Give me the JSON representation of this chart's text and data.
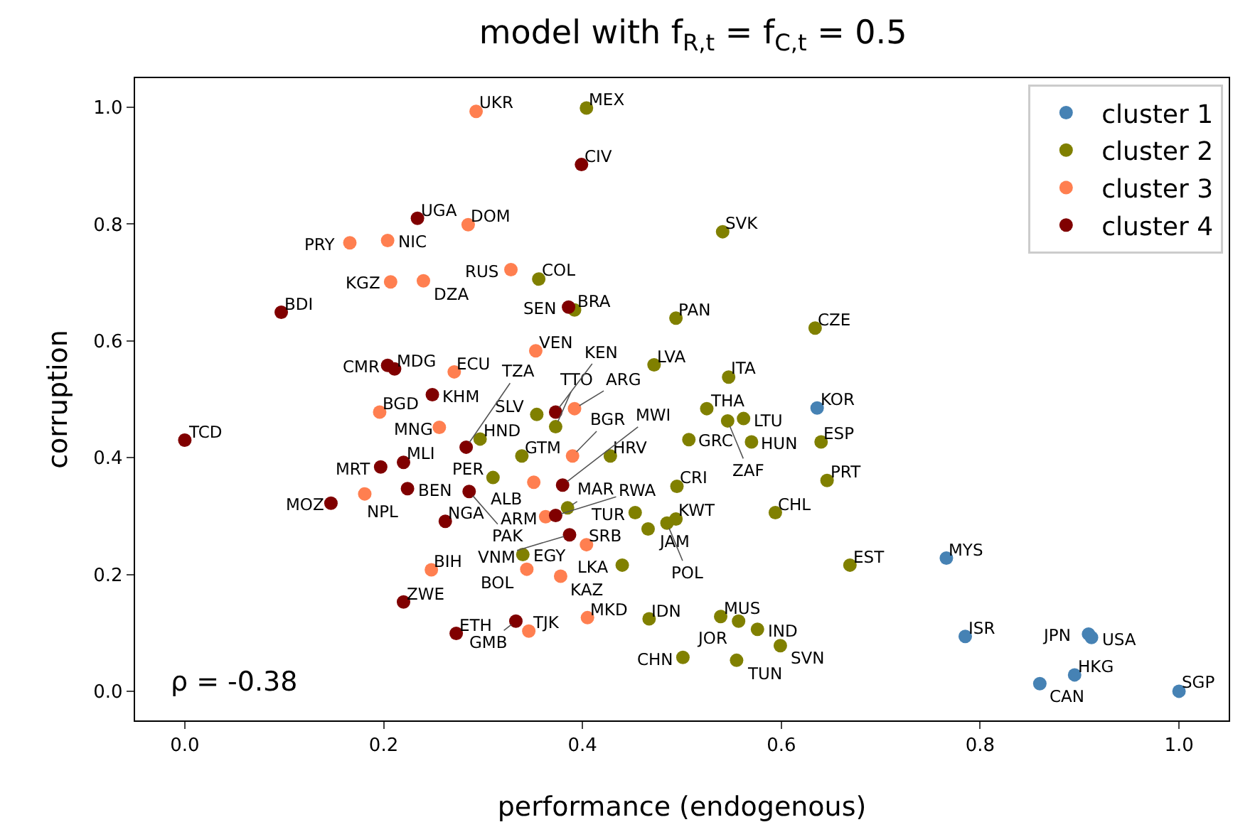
{
  "chart_data": {
    "type": "scatter",
    "title": "model with f$_{R,t}$ = f$_{C,t}$ = 0.5",
    "xlabel": "performance (endogenous)",
    "ylabel": "corruption",
    "xlim": [
      -0.05,
      1.05
    ],
    "ylim": [
      -0.05,
      1.05
    ],
    "xticks": [
      {
        "value": 0,
        "label": "0.0"
      },
      {
        "value": 0.2,
        "label": "0.2"
      },
      {
        "value": 0.4,
        "label": "0.4"
      },
      {
        "value": 0.6,
        "label": "0.6"
      },
      {
        "value": 0.8,
        "label": "0.8"
      },
      {
        "value": 1,
        "label": "1.0"
      }
    ],
    "yticks": [
      {
        "value": 0,
        "label": "0.0"
      },
      {
        "value": 0.2,
        "label": "0.2"
      },
      {
        "value": 0.4,
        "label": "0.4"
      },
      {
        "value": 0.6,
        "label": "0.6"
      },
      {
        "value": 0.8,
        "label": "0.8"
      },
      {
        "value": 1,
        "label": "1.0"
      }
    ],
    "grid": false,
    "legend": "top right",
    "marker": "circle",
    "series": [
      {
        "name": "cluster 1",
        "color": "#4682b4",
        "x": [
          0.636,
          0.766,
          0.785,
          0.909,
          0.912,
          0.895,
          0.86,
          1.0
        ],
        "values": [
          0.485,
          0.228,
          0.094,
          0.098,
          0.092,
          0.028,
          0.013,
          0.0
        ]
      },
      {
        "name": "cluster 2",
        "color": "#808000",
        "x": [
          0.404,
          0.541,
          0.356,
          0.392,
          0.494,
          0.634,
          0.472,
          0.547,
          0.525,
          0.546,
          0.562,
          0.507,
          0.57,
          0.64,
          0.646,
          0.495,
          0.453,
          0.494,
          0.466,
          0.485,
          0.594,
          0.669,
          0.44,
          0.34,
          0.467,
          0.539,
          0.557,
          0.576,
          0.599,
          0.501,
          0.555,
          0.297,
          0.339,
          0.428,
          0.31,
          0.385,
          0.354,
          0.373
        ],
        "values": [
          0.999,
          0.787,
          0.706,
          0.653,
          0.639,
          0.622,
          0.559,
          0.538,
          0.484,
          0.463,
          0.467,
          0.431,
          0.427,
          0.427,
          0.361,
          0.351,
          0.306,
          0.295,
          0.278,
          0.288,
          0.306,
          0.216,
          0.216,
          0.234,
          0.124,
          0.128,
          0.12,
          0.106,
          0.078,
          0.058,
          0.053,
          0.432,
          0.403,
          0.403,
          0.366,
          0.314,
          0.474,
          0.453
        ]
      },
      {
        "name": "cluster 3",
        "color": "#ff7f50",
        "x": [
          0.293,
          0.285,
          0.328,
          0.353,
          0.166,
          0.204,
          0.207,
          0.24,
          0.271,
          0.196,
          0.256,
          0.181,
          0.248,
          0.344,
          0.378,
          0.404,
          0.346,
          0.405,
          0.363,
          0.39,
          0.351,
          0.392
        ],
        "values": [
          0.993,
          0.799,
          0.722,
          0.583,
          0.768,
          0.772,
          0.701,
          0.703,
          0.547,
          0.478,
          0.452,
          0.338,
          0.208,
          0.209,
          0.197,
          0.251,
          0.103,
          0.126,
          0.299,
          0.403,
          0.358,
          0.484
        ]
      },
      {
        "name": "cluster 4",
        "color": "#800000",
        "x": [
          0.234,
          0.399,
          0.386,
          0.097,
          0.204,
          0.211,
          0.249,
          0,
          0.197,
          0.22,
          0.224,
          0.147,
          0.262,
          0.22,
          0.273,
          0.333,
          0.283,
          0.286,
          0.373,
          0.387,
          0.373,
          0.38
        ],
        "values": [
          0.81,
          0.902,
          0.658,
          0.649,
          0.558,
          0.552,
          0.508,
          0.43,
          0.384,
          0.392,
          0.347,
          0.322,
          0.291,
          0.153,
          0.099,
          0.12,
          0.418,
          0.342,
          0.301,
          0.268,
          0.478,
          0.353
        ]
      }
    ],
    "annotations": [
      {
        "text": "KOR",
        "x": 0.636,
        "y": 0.485
      },
      {
        "text": "MYS",
        "x": 0.766,
        "y": 0.228
      },
      {
        "text": "ISR",
        "x": 0.785,
        "y": 0.094
      },
      {
        "text": "JPN",
        "x": 0.909,
        "y": 0.098
      },
      {
        "text": "USA",
        "x": 0.912,
        "y": 0.092
      },
      {
        "text": "HKG",
        "x": 0.895,
        "y": 0.028
      },
      {
        "text": "CAN",
        "x": 0.86,
        "y": 0.013
      },
      {
        "text": "SGP",
        "x": 1.0,
        "y": 0.0
      },
      {
        "text": "MEX",
        "x": 0.404,
        "y": 0.999
      },
      {
        "text": "SVK",
        "x": 0.541,
        "y": 0.787
      },
      {
        "text": "COL",
        "x": 0.356,
        "y": 0.706
      },
      {
        "text": "BRA",
        "x": 0.392,
        "y": 0.653
      },
      {
        "text": "PAN",
        "x": 0.494,
        "y": 0.639
      },
      {
        "text": "CZE",
        "x": 0.634,
        "y": 0.622
      },
      {
        "text": "LVA",
        "x": 0.472,
        "y": 0.559
      },
      {
        "text": "ITA",
        "x": 0.547,
        "y": 0.538
      },
      {
        "text": "THA",
        "x": 0.525,
        "y": 0.484
      },
      {
        "text": "ZAF",
        "x": 0.546,
        "y": 0.463
      },
      {
        "text": "LTU",
        "x": 0.562,
        "y": 0.467
      },
      {
        "text": "GRC",
        "x": 0.507,
        "y": 0.431
      },
      {
        "text": "HUN",
        "x": 0.57,
        "y": 0.427
      },
      {
        "text": "ESP",
        "x": 0.64,
        "y": 0.427
      },
      {
        "text": "PRT",
        "x": 0.646,
        "y": 0.361
      },
      {
        "text": "CRI",
        "x": 0.495,
        "y": 0.351
      },
      {
        "text": "TUR",
        "x": 0.453,
        "y": 0.306
      },
      {
        "text": "KWT",
        "x": 0.494,
        "y": 0.295
      },
      {
        "text": "JAM",
        "x": 0.466,
        "y": 0.278
      },
      {
        "text": "POL",
        "x": 0.485,
        "y": 0.288
      },
      {
        "text": "CHL",
        "x": 0.594,
        "y": 0.306
      },
      {
        "text": "EST",
        "x": 0.669,
        "y": 0.216
      },
      {
        "text": "LKA",
        "x": 0.44,
        "y": 0.216
      },
      {
        "text": "EGY",
        "x": 0.34,
        "y": 0.234
      },
      {
        "text": "IDN",
        "x": 0.467,
        "y": 0.124
      },
      {
        "text": "MUS",
        "x": 0.539,
        "y": 0.128
      },
      {
        "text": "JOR",
        "x": 0.557,
        "y": 0.12
      },
      {
        "text": "IND",
        "x": 0.576,
        "y": 0.106
      },
      {
        "text": "SVN",
        "x": 0.599,
        "y": 0.078
      },
      {
        "text": "CHN",
        "x": 0.501,
        "y": 0.058
      },
      {
        "text": "TUN",
        "x": 0.555,
        "y": 0.053
      },
      {
        "text": "HND",
        "x": 0.297,
        "y": 0.432
      },
      {
        "text": "GTM",
        "x": 0.339,
        "y": 0.403
      },
      {
        "text": "HRV",
        "x": 0.428,
        "y": 0.403
      },
      {
        "text": "PER",
        "x": 0.31,
        "y": 0.366
      },
      {
        "text": "MAR",
        "x": 0.385,
        "y": 0.314
      },
      {
        "text": "SLV",
        "x": 0.354,
        "y": 0.474
      },
      {
        "text": "TTO",
        "x": 0.373,
        "y": 0.453
      },
      {
        "text": "UKR",
        "x": 0.293,
        "y": 0.993
      },
      {
        "text": "DOM",
        "x": 0.285,
        "y": 0.799
      },
      {
        "text": "RUS",
        "x": 0.328,
        "y": 0.722
      },
      {
        "text": "VEN",
        "x": 0.353,
        "y": 0.583
      },
      {
        "text": "PRY",
        "x": 0.166,
        "y": 0.768
      },
      {
        "text": "NIC",
        "x": 0.204,
        "y": 0.772
      },
      {
        "text": "KGZ",
        "x": 0.207,
        "y": 0.701
      },
      {
        "text": "DZA",
        "x": 0.24,
        "y": 0.703
      },
      {
        "text": "ECU",
        "x": 0.271,
        "y": 0.547
      },
      {
        "text": "BGD",
        "x": 0.196,
        "y": 0.478
      },
      {
        "text": "MNG",
        "x": 0.256,
        "y": 0.452
      },
      {
        "text": "NPL",
        "x": 0.181,
        "y": 0.338
      },
      {
        "text": "BIH",
        "x": 0.248,
        "y": 0.208
      },
      {
        "text": "BOL",
        "x": 0.344,
        "y": 0.209
      },
      {
        "text": "KAZ",
        "x": 0.378,
        "y": 0.197
      },
      {
        "text": "SRB",
        "x": 0.404,
        "y": 0.251
      },
      {
        "text": "TJK",
        "x": 0.346,
        "y": 0.103
      },
      {
        "text": "MKD",
        "x": 0.405,
        "y": 0.126
      },
      {
        "text": "ARM",
        "x": 0.363,
        "y": 0.299
      },
      {
        "text": "BGR",
        "x": 0.39,
        "y": 0.403
      },
      {
        "text": "ALB",
        "x": 0.351,
        "y": 0.358
      },
      {
        "text": "ARG",
        "x": 0.392,
        "y": 0.484
      },
      {
        "text": "UGA",
        "x": 0.234,
        "y": 0.81
      },
      {
        "text": "CIV",
        "x": 0.399,
        "y": 0.902
      },
      {
        "text": "SEN",
        "x": 0.386,
        "y": 0.658
      },
      {
        "text": "BDI",
        "x": 0.097,
        "y": 0.649
      },
      {
        "text": "CMR",
        "x": 0.204,
        "y": 0.558
      },
      {
        "text": "MDG",
        "x": 0.211,
        "y": 0.552
      },
      {
        "text": "KHM",
        "x": 0.249,
        "y": 0.508
      },
      {
        "text": "TCD",
        "x": 0,
        "y": 0.43
      },
      {
        "text": "MRT",
        "x": 0.197,
        "y": 0.384
      },
      {
        "text": "MLI",
        "x": 0.22,
        "y": 0.392
      },
      {
        "text": "BEN",
        "x": 0.224,
        "y": 0.347
      },
      {
        "text": "MOZ",
        "x": 0.147,
        "y": 0.322
      },
      {
        "text": "NGA",
        "x": 0.262,
        "y": 0.291
      },
      {
        "text": "ZWE",
        "x": 0.22,
        "y": 0.153
      },
      {
        "text": "ETH",
        "x": 0.273,
        "y": 0.099
      },
      {
        "text": "GMB",
        "x": 0.333,
        "y": 0.12
      },
      {
        "text": "TZA",
        "x": 0.283,
        "y": 0.418
      },
      {
        "text": "PAK",
        "x": 0.286,
        "y": 0.342
      },
      {
        "text": "RWA",
        "x": 0.373,
        "y": 0.301
      },
      {
        "text": "VNM",
        "x": 0.387,
        "y": 0.268
      },
      {
        "text": "KEN",
        "x": 0.373,
        "y": 0.478
      },
      {
        "text": "MWI",
        "x": 0.38,
        "y": 0.353
      },
      "ρ = -0.38"
    ]
  }
}
